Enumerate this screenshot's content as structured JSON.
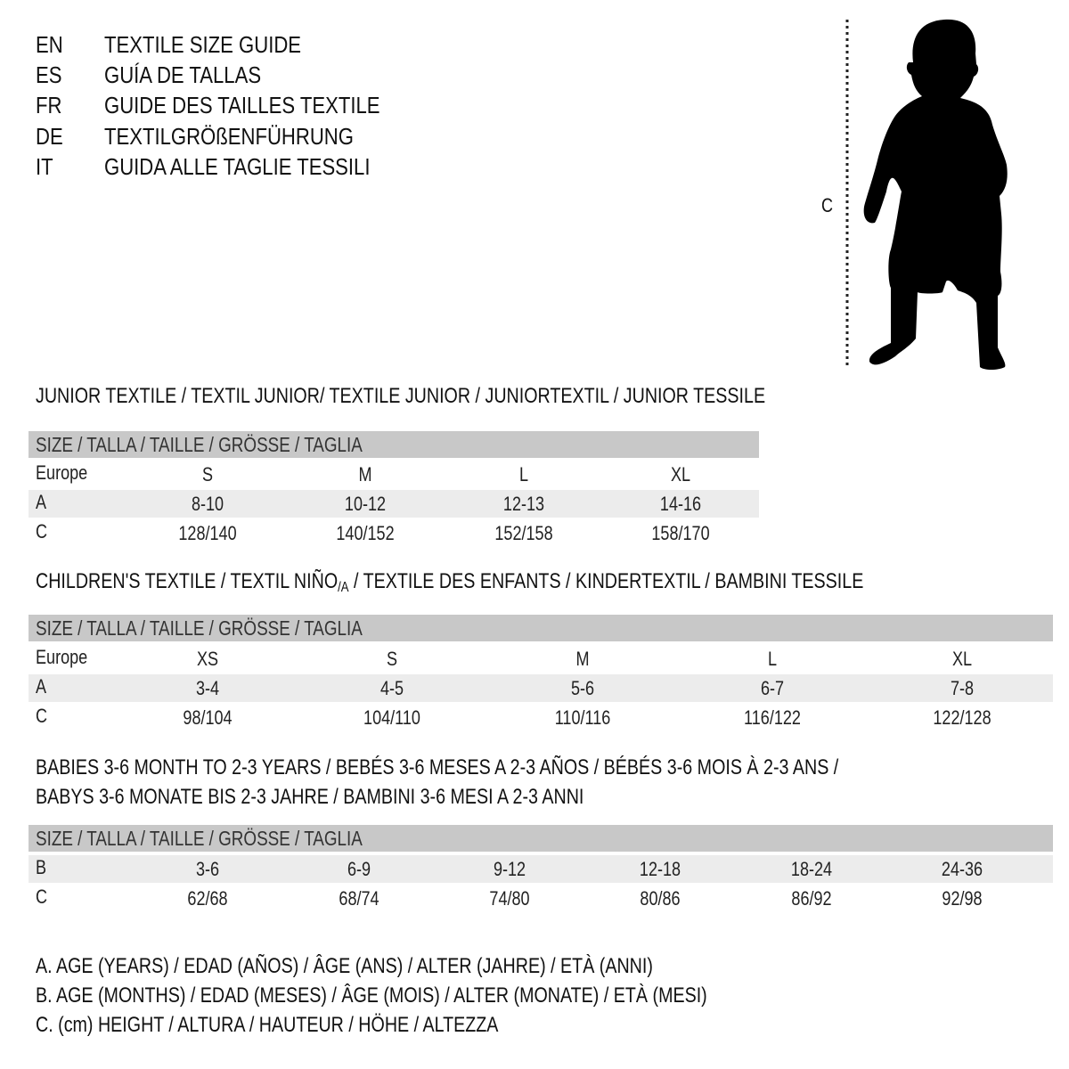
{
  "languages": [
    {
      "code": "EN",
      "title": "TEXTILE SIZE GUIDE"
    },
    {
      "code": "ES",
      "title": "GUÍA DE TALLAS"
    },
    {
      "code": "FR",
      "title": "GUIDE DES TAILLES TEXTILE"
    },
    {
      "code": "DE",
      "title": "TEXTILGRÖßENFÜHRUNG"
    },
    {
      "code": "IT",
      "title": "GUIDA ALLE TAGLIE TESSILI"
    }
  ],
  "figure": {
    "height_label": "C",
    "icon": "child-silhouette-icon"
  },
  "size_header": "SIZE / TALLA / TAILLE / GRÖSSE / TAGLIA",
  "junior": {
    "title": "JUNIOR TEXTILE / TEXTIL JUNIOR/ TEXTILE JUNIOR / JUNIORTEXTIL / JUNIOR TESSILE",
    "rows": [
      {
        "label": "Europe",
        "values": [
          "S",
          "M",
          "L",
          "XL"
        ]
      },
      {
        "label": "A",
        "values": [
          "8-10",
          "10-12",
          "12-13",
          "14-16"
        ]
      },
      {
        "label": "C",
        "values": [
          "128/140",
          "140/152",
          "152/158",
          "158/170"
        ]
      }
    ]
  },
  "children": {
    "title_before": "CHILDREN'S TEXTILE / TEXTIL NIÑO",
    "title_sub": "/A",
    "title_after": " / TEXTILE DES ENFANTS / KINDERTEXTIL / BAMBINI TESSILE",
    "rows": [
      {
        "label": "Europe",
        "values": [
          "XS",
          "S",
          "M",
          "L",
          "XL"
        ]
      },
      {
        "label": "A",
        "values": [
          "3-4",
          "4-5",
          "5-6",
          "6-7",
          "7-8"
        ]
      },
      {
        "label": "C",
        "values": [
          "98/104",
          "104/110",
          "110/116",
          "116/122",
          "122/128"
        ]
      }
    ]
  },
  "babies": {
    "title_line1": "BABIES 3-6 MONTH TO 2-3 YEARS / BEBÉS 3-6 MESES A 2-3 AÑOS / BÉBÉS 3-6 MOIS À 2-3 ANS /",
    "title_line2": "BABYS 3-6 MONATE BIS 2-3 JAHRE / BAMBINI 3-6 MESI A 2-3 ANNI",
    "rows": [
      {
        "label": "B",
        "values": [
          "3-6",
          "6-9",
          "9-12",
          "12-18",
          "18-24",
          "24-36"
        ]
      },
      {
        "label": "C",
        "values": [
          "62/68",
          "68/74",
          "74/80",
          "80/86",
          "86/92",
          "92/98"
        ]
      }
    ]
  },
  "legend": [
    "A. AGE (YEARS) / EDAD (AÑOS) / ÂGE (ANS) / ALTER (JAHRE) / ETÀ (ANNI)",
    "B. AGE (MONTHS) / EDAD (MESES) / ÂGE (MOIS) / ALTER (MONATE) / ETÀ (MESI)",
    "C. (cm) HEIGHT / ALTURA / HAUTEUR / HÖHE / ALTEZZA"
  ],
  "colors": {
    "header_bg": "#c8c8c8",
    "shade_bg": "#ececec"
  }
}
